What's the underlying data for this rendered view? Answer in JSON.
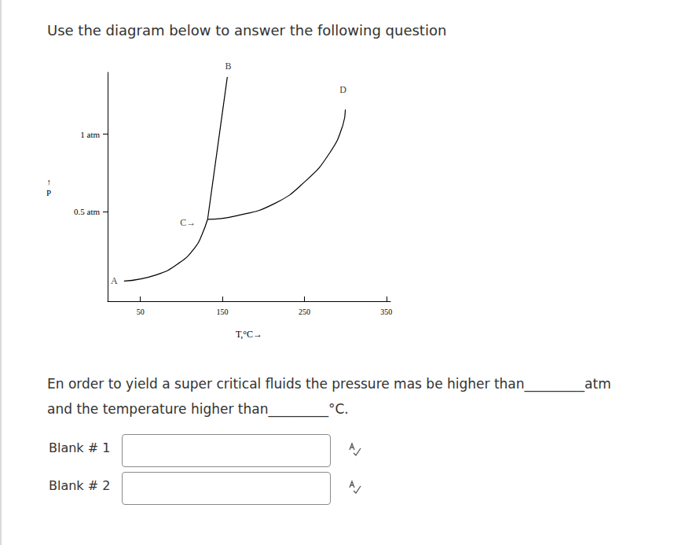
{
  "instruction": "Use the diagram below to answer the following question",
  "chart_data": {
    "type": "line",
    "x_label": "T,°C→",
    "y_label": "↑\nP",
    "xlim": [
      10,
      355
    ],
    "xticks": [
      50,
      150,
      250,
      350
    ],
    "ylim": [
      -0.08,
      1.4
    ],
    "yticks": [
      {
        "value": 0.5,
        "label": "0.5 atm"
      },
      {
        "value": 1,
        "label": "1 atm"
      }
    ],
    "grid": false,
    "color": "#000000",
    "marker": "none",
    "line_style": "solid",
    "series": [
      {
        "x": [
          30,
          69,
          98,
          117,
          125,
          132
        ],
        "values": [
          0.05,
          0.09,
          0.17,
          0.27,
          0.35,
          0.45
        ]
      },
      {
        "x": [
          132,
          156
        ],
        "values": [
          0.45,
          1.37
        ]
      },
      {
        "x": [
          132,
          165,
          213,
          252,
          281,
          297,
          300
        ],
        "values": [
          0.45,
          0.47,
          0.55,
          0.7,
          0.88,
          1.06,
          1.16
        ]
      }
    ],
    "annotations": [
      {
        "text": "A",
        "x": 18,
        "y": 0.05
      },
      {
        "text": "B",
        "x": 157,
        "y": 1.44
      },
      {
        "text": "C→",
        "x": 108,
        "y": 0.43
      },
      {
        "text": "D",
        "x": 297,
        "y": 1.29
      }
    ]
  },
  "question": [
    "En order to yield a super critical fluids the pressure mas be higher than_________atm",
    "and the temperature higher than_________°C."
  ],
  "blanks": [
    "Blank # 1",
    "Blank # 2"
  ]
}
